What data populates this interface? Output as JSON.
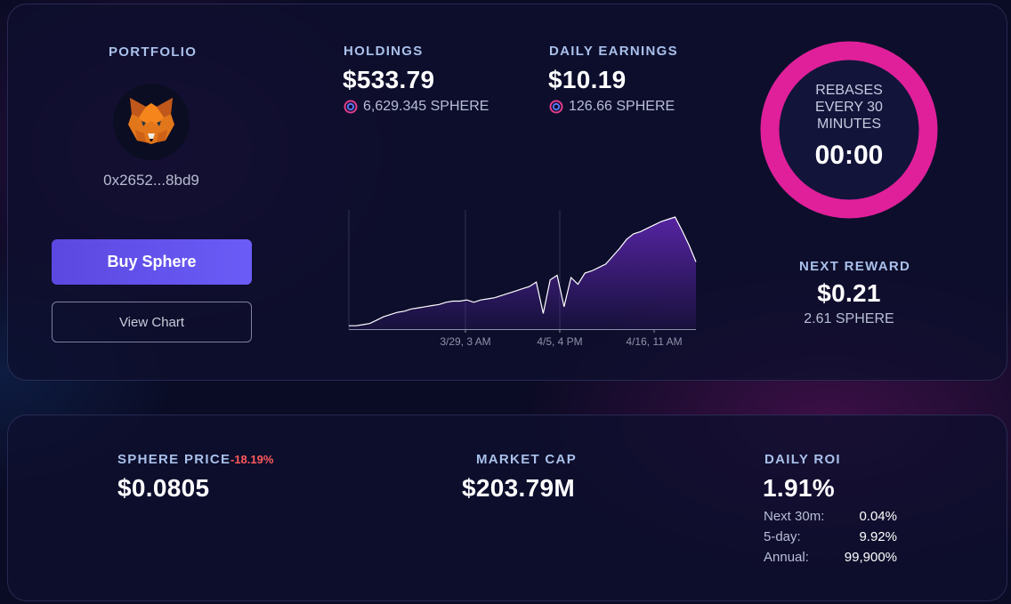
{
  "portfolio": {
    "label": "PORTFOLIO",
    "address": "0x2652...8bd9",
    "buy_label": "Buy Sphere",
    "chart_label": "View Chart",
    "avatar_icon": "metamask-fox-icon"
  },
  "holdings": {
    "label": "HOLDINGS",
    "usd": "$533.79",
    "tokens": "6,629.345 SPHERE",
    "icon": "sphere-token-icon"
  },
  "daily_earnings": {
    "label": "DAILY EARNINGS",
    "usd": "$10.19",
    "tokens": "126.66 SPHERE",
    "icon": "sphere-token-icon"
  },
  "rebase": {
    "text_lines": [
      "REBASES",
      "EVERY 30",
      "MINUTES"
    ],
    "timer": "00:00",
    "progress": 1.0,
    "ring_color": "#e0209a"
  },
  "next_reward": {
    "label": "NEXT REWARD",
    "usd": "$0.21",
    "tokens": "2.61 SPHERE"
  },
  "chart_data": {
    "type": "area",
    "x_tick_labels": [
      "3/29, 3 AM",
      "4/5, 4 PM",
      "4/16, 11 AM"
    ],
    "series": [
      {
        "values": [
          0.03,
          0.03,
          0.04,
          0.05,
          0.08,
          0.11,
          0.13,
          0.15,
          0.16,
          0.18,
          0.19,
          0.2,
          0.21,
          0.22,
          0.24,
          0.25,
          0.25,
          0.26,
          0.24,
          0.26,
          0.27,
          0.28,
          0.3,
          0.32,
          0.34,
          0.36,
          0.38,
          0.42,
          0.14,
          0.44,
          0.48,
          0.2,
          0.46,
          0.4,
          0.5,
          0.52,
          0.55,
          0.58,
          0.65,
          0.72,
          0.8,
          0.85,
          0.87,
          0.9,
          0.93,
          0.96,
          0.98,
          1.0,
          0.88,
          0.75,
          0.6
        ]
      }
    ],
    "line_color": "#ffffff",
    "fill_color": "#5a25a8",
    "grid": true
  },
  "stats": {
    "sphere_price": {
      "label": "SPHERE PRICE",
      "change": "-18.19%",
      "value": "$0.0805"
    },
    "market_cap": {
      "label": "MARKET CAP",
      "value": "$203.79M"
    },
    "daily_roi": {
      "label": "DAILY ROI",
      "value": "1.91%",
      "rows": [
        {
          "k": "Next 30m:",
          "v": "0.04%"
        },
        {
          "k": "5-day:",
          "v": "9.92%"
        },
        {
          "k": "Annual:",
          "v": "99,900%"
        }
      ]
    }
  },
  "colors": {
    "accent_blue": "#5b48e0",
    "negative": "#ff5a5a",
    "label_blue": "#a9c0ea"
  }
}
